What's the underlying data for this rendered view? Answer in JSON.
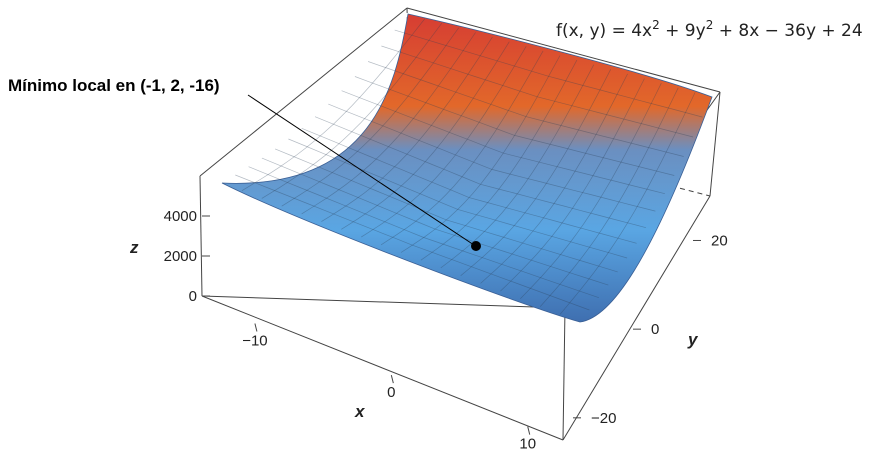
{
  "chart_data": {
    "type": "surface3d",
    "function_label_html": "f(x, y) = 4x² + 9y² + 8x − 36y + 24",
    "function": {
      "a": 4,
      "b": 9,
      "c": 8,
      "d": -36,
      "e": 24
    },
    "xlabel": "x",
    "ylabel": "y",
    "zlabel": "z",
    "xlim": [
      -13,
      12
    ],
    "ylim": [
      -25,
      28
    ],
    "zlim": [
      0,
      6000
    ],
    "x_ticks": [
      {
        "value": -10,
        "label": "−10"
      },
      {
        "value": 0,
        "label": "0"
      },
      {
        "value": 10,
        "label": "10"
      }
    ],
    "y_ticks": [
      {
        "value": -20,
        "label": "−20"
      },
      {
        "value": 0,
        "label": "0"
      },
      {
        "value": 20,
        "label": "20"
      }
    ],
    "z_ticks": [
      {
        "value": 0,
        "label": "0"
      },
      {
        "value": 2000,
        "label": "2000"
      },
      {
        "value": 4000,
        "label": "4000"
      }
    ],
    "colormap": [
      "#3f6fb0",
      "#5aa6e3",
      "#e2682a",
      "#d63d33"
    ],
    "annotation": {
      "text": "Mínimo local en (-1, 2, -16)",
      "point": [
        -1,
        2,
        -16
      ]
    }
  }
}
